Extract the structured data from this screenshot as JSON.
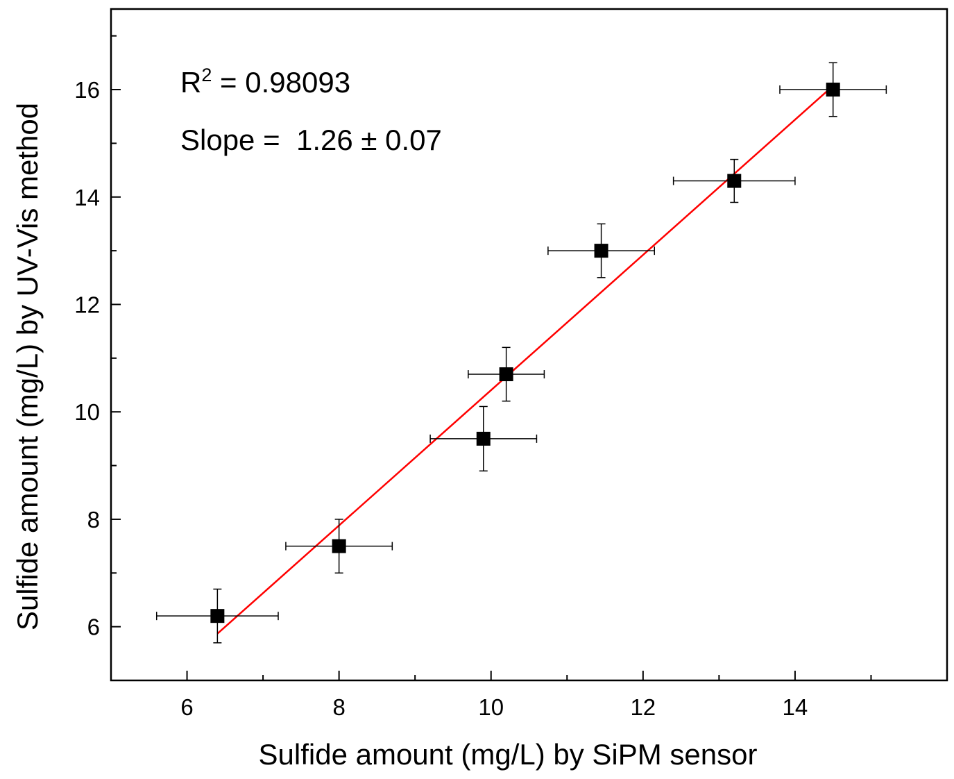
{
  "chart_data": {
    "type": "scatter",
    "title": "",
    "xlabel": "Sulfide amount (mg/L) by SiPM sensor",
    "ylabel": "Sulfide amount (mg/L) by UV-Vis method",
    "xlim": [
      5.0,
      16.0
    ],
    "ylim": [
      5.0,
      17.5
    ],
    "x_ticks": [
      6,
      8,
      10,
      12,
      14
    ],
    "x_ticks_minor": [
      5,
      7,
      9,
      11,
      13,
      15
    ],
    "y_ticks": [
      6,
      8,
      10,
      12,
      14,
      16
    ],
    "y_ticks_minor": [
      5,
      7,
      9,
      11,
      13,
      15,
      17
    ],
    "x_tick_labels": [
      "6",
      "8",
      "10",
      "12",
      "14"
    ],
    "y_tick_labels": [
      "6",
      "8",
      "10",
      "12",
      "14",
      "16"
    ],
    "grid": false,
    "series": [
      {
        "name": "data",
        "marker": "square",
        "color": "#000000",
        "points": [
          {
            "x": 6.4,
            "y": 6.2,
            "xerr": 0.8,
            "yerr": 0.5
          },
          {
            "x": 8.0,
            "y": 7.5,
            "xerr": 0.7,
            "yerr": 0.5
          },
          {
            "x": 9.9,
            "y": 9.5,
            "xerr": 0.7,
            "yerr": 0.6
          },
          {
            "x": 10.2,
            "y": 10.7,
            "xerr": 0.5,
            "yerr": 0.5
          },
          {
            "x": 11.45,
            "y": 13.0,
            "xerr": 0.7,
            "yerr": 0.5
          },
          {
            "x": 13.2,
            "y": 14.3,
            "xerr": 0.8,
            "yerr": 0.4
          },
          {
            "x": 14.5,
            "y": 16.0,
            "xerr": 0.7,
            "yerr": 0.5
          }
        ]
      }
    ],
    "fit_line": {
      "color": "#ff0000",
      "x_start": 6.4,
      "y_start": 5.87,
      "x_end": 14.5,
      "y_end": 16.07
    },
    "annotations": {
      "r2_label_prefix": "R",
      "r2_label_sup": "2",
      "r2_label_value": " = 0.98093",
      "slope_label": "Slope =  1.26 ± 0.07"
    }
  }
}
